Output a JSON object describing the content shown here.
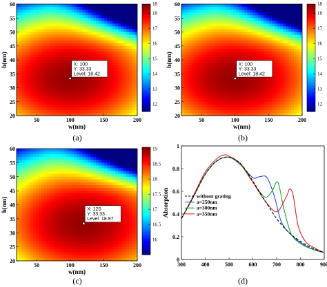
{
  "chart_data": [
    {
      "type": "heatmap",
      "panel_label": "(a)",
      "xlabel": "w(nm)",
      "ylabel": "h(nm)",
      "xlim": [
        20,
        200
      ],
      "ylim": [
        20,
        60
      ],
      "xticks": [
        "50",
        "100",
        "150",
        "200"
      ],
      "yticks": [
        "20",
        "25",
        "30",
        "35",
        "40",
        "45",
        "50",
        "55",
        "60"
      ],
      "colorbar": {
        "min": 11.5,
        "max": 18.6,
        "ticks": [
          "12",
          "13",
          "14",
          "15",
          "16",
          "17",
          "18"
        ],
        "top_label": "18"
      },
      "peak": {
        "x": 100,
        "y": 33.33,
        "level": 18.42
      },
      "datatip": {
        "x": "X: 100",
        "y": "Y: 33.33",
        "level": "Level: 18.42"
      }
    },
    {
      "type": "heatmap",
      "panel_label": "(b)",
      "xlabel": "w(nm)",
      "ylabel": "h(nm)",
      "xlim": [
        20,
        200
      ],
      "ylim": [
        20,
        60
      ],
      "xticks": [
        "50",
        "100",
        "150",
        "200"
      ],
      "yticks": [
        "20",
        "25",
        "30",
        "35",
        "40",
        "45",
        "50",
        "55",
        "60"
      ],
      "colorbar": {
        "min": 11.5,
        "max": 18.6,
        "ticks": [
          "12",
          "13",
          "14",
          "15",
          "16",
          "17",
          "18"
        ],
        "top_label": "18"
      },
      "peak": {
        "x": 100,
        "y": 33.33,
        "level": 18.42
      },
      "datatip": {
        "x": "X: 100",
        "y": "Y: 33.33",
        "level": "Level: 18.42"
      }
    },
    {
      "type": "heatmap",
      "panel_label": "(c)",
      "xlabel": "w(nm)",
      "ylabel": "h(nm)",
      "xlim": [
        20,
        200
      ],
      "ylim": [
        20,
        60
      ],
      "xticks": [
        "50",
        "100",
        "150",
        "200"
      ],
      "yticks": [
        "20",
        "25",
        "30",
        "35",
        "40",
        "45",
        "50",
        "55",
        "60"
      ],
      "colorbar": {
        "min": 15.5,
        "max": 19.05,
        "ticks": [
          "16",
          "16.5",
          "17",
          "17.5",
          "18",
          "18.5",
          "19"
        ]
      },
      "peak": {
        "x": 120,
        "y": 33.33,
        "level": 18.97
      },
      "datatip": {
        "x": "X: 120",
        "y": "Y: 33.33",
        "level": "Level: 18.97"
      }
    },
    {
      "type": "line",
      "panel_label": "(d)",
      "xlabel": "",
      "ylabel": "Absorption",
      "xlim": [
        300,
        900
      ],
      "ylim": [
        0,
        1
      ],
      "xticks": [
        "300",
        "400",
        "500",
        "600",
        "700",
        "800",
        "900"
      ],
      "yticks": [
        "0",
        "0.2",
        "0.4",
        "0.6",
        "0.8",
        "1"
      ],
      "series": [
        {
          "name": "without grating",
          "color": "#000000",
          "dash": true,
          "x": [
            300,
            350,
            400,
            450,
            500,
            550,
            600,
            650,
            700,
            750,
            800,
            850,
            900
          ],
          "y": [
            0.36,
            0.55,
            0.75,
            0.87,
            0.9,
            0.84,
            0.69,
            0.52,
            0.36,
            0.24,
            0.16,
            0.1,
            0.06
          ]
        },
        {
          "name": "a=250nm",
          "color": "#1f4fd8",
          "dash": false,
          "x": [
            300,
            350,
            400,
            450,
            500,
            550,
            600,
            630,
            660,
            690,
            720,
            760,
            800,
            850,
            900
          ],
          "y": [
            0.36,
            0.55,
            0.75,
            0.87,
            0.9,
            0.83,
            0.72,
            0.73,
            0.72,
            0.56,
            0.33,
            0.22,
            0.15,
            0.09,
            0.06
          ]
        },
        {
          "name": "a=300nm",
          "color": "#1e9e2e",
          "dash": false,
          "x": [
            300,
            350,
            400,
            450,
            500,
            550,
            600,
            650,
            680,
            705,
            730,
            760,
            800,
            850,
            900
          ],
          "y": [
            0.36,
            0.55,
            0.75,
            0.87,
            0.9,
            0.83,
            0.68,
            0.55,
            0.6,
            0.68,
            0.45,
            0.23,
            0.14,
            0.09,
            0.06
          ]
        },
        {
          "name": "a=350nm",
          "color": "#d62020",
          "dash": false,
          "x": [
            300,
            350,
            400,
            450,
            480,
            500,
            550,
            600,
            650,
            700,
            740,
            755,
            770,
            790,
            820,
            860,
            900
          ],
          "y": [
            0.36,
            0.56,
            0.77,
            0.89,
            0.92,
            0.91,
            0.84,
            0.68,
            0.52,
            0.42,
            0.55,
            0.62,
            0.56,
            0.3,
            0.16,
            0.1,
            0.06
          ]
        }
      ],
      "legend": {
        "position": "lower-left"
      }
    }
  ]
}
